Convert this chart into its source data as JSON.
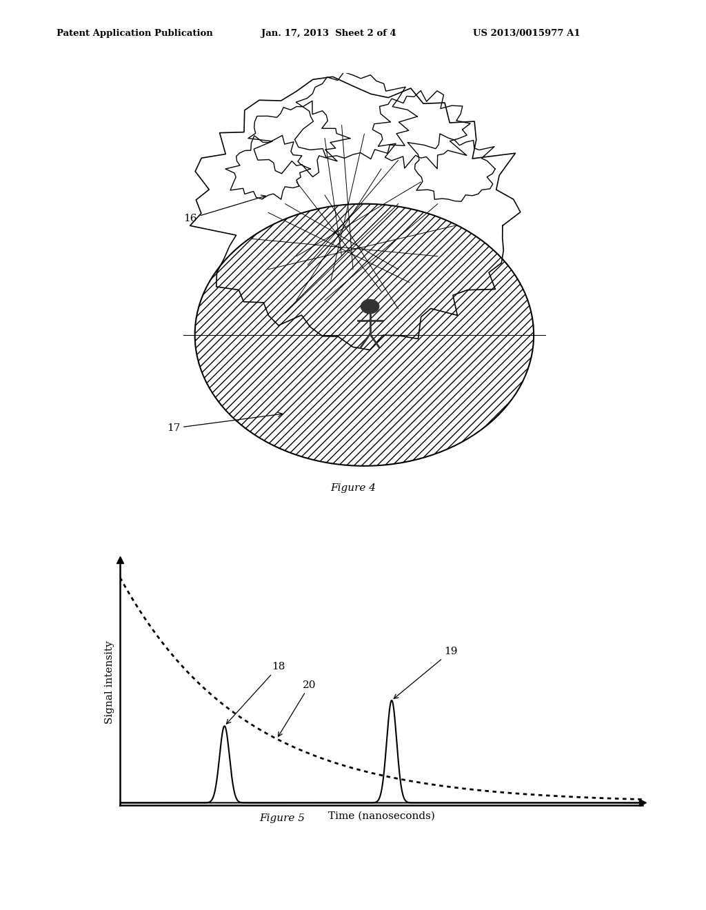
{
  "header_left": "Patent Application Publication",
  "header_mid": "Jan. 17, 2013  Sheet 2 of 4",
  "header_right": "US 2013/0015977 A1",
  "fig4_caption": "Figure 4",
  "fig5_caption": "Figure 5",
  "fig5_xlabel": "Time (nanoseconds)",
  "fig5_ylabel": "Signal intensity",
  "label_16": "16",
  "label_17": "17",
  "label_18": "18",
  "label_19": "19",
  "label_20": "20",
  "bg_color": "#ffffff",
  "line_color": "#000000"
}
